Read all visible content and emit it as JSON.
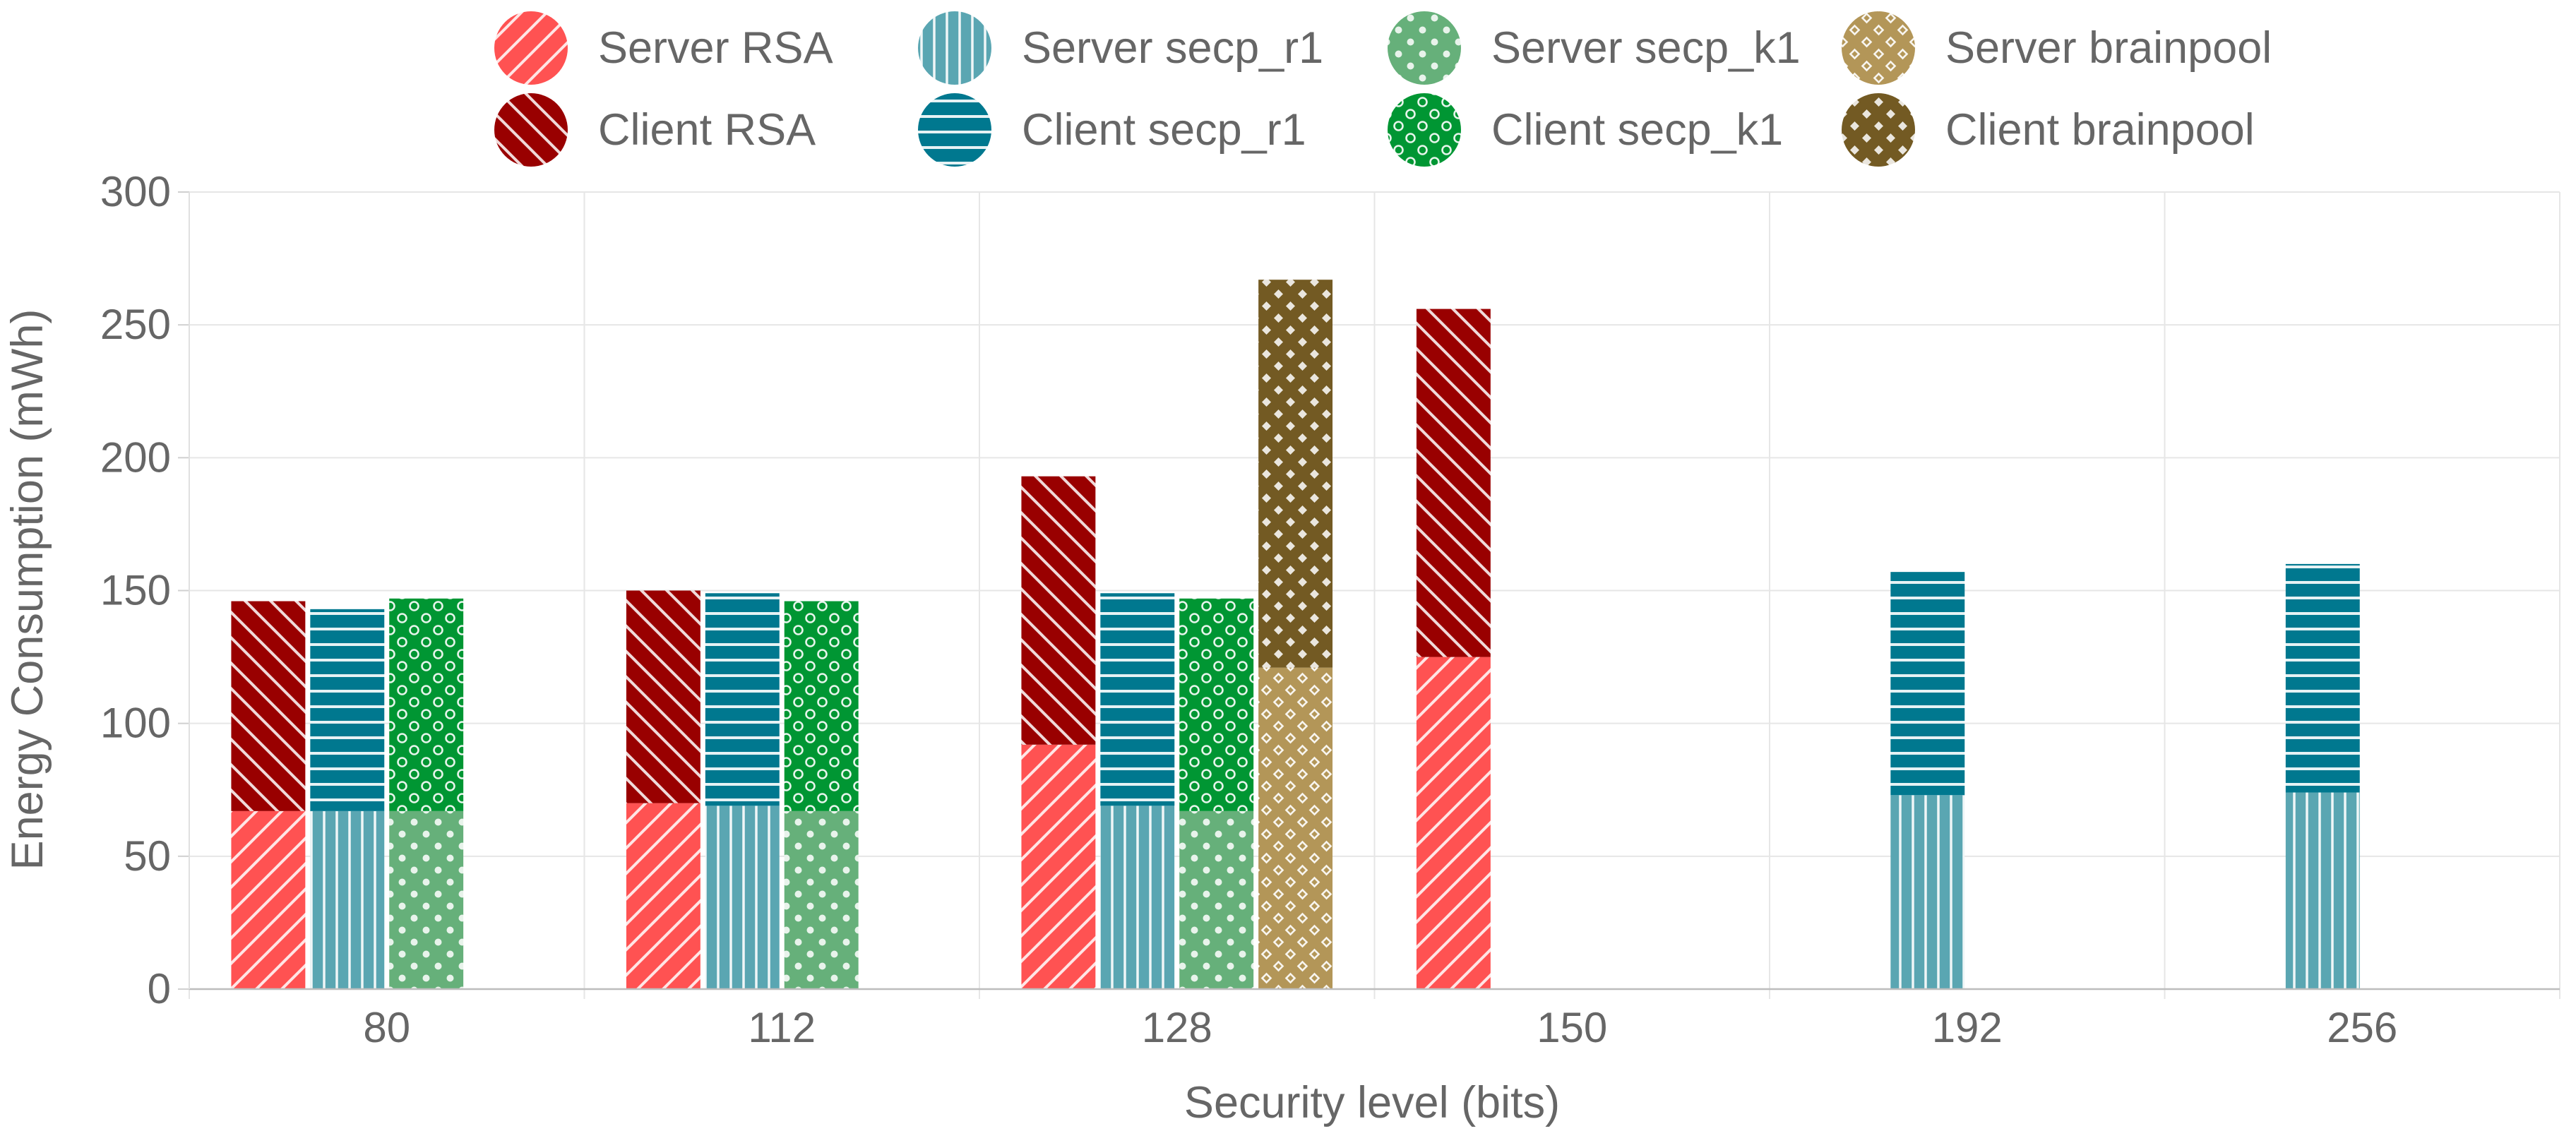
{
  "chart_data": {
    "type": "bar",
    "stacked": true,
    "xlabel": "Security level (bits)",
    "ylabel": "Energy Consumption (mWh)",
    "ylim": [
      0,
      300
    ],
    "yticks": [
      0,
      50,
      100,
      150,
      200,
      250,
      300
    ],
    "categories": [
      "80",
      "112",
      "128",
      "150",
      "192",
      "256"
    ],
    "legend_position": "top",
    "groups": [
      {
        "name": "RSA",
        "server": "Server RSA",
        "client": "Client RSA",
        "server_values": [
          67,
          70,
          92,
          125,
          null,
          null
        ],
        "client_values": [
          79,
          80,
          101,
          131,
          null,
          null
        ]
      },
      {
        "name": "secp_r1",
        "server": "Server secp_r1",
        "client": "Client secp_r1",
        "server_values": [
          67,
          69,
          69,
          null,
          73,
          74
        ],
        "client_values": [
          76,
          80,
          80,
          null,
          84,
          86
        ]
      },
      {
        "name": "secp_k1",
        "server": "Server secp_k1",
        "client": "Client secp_k1",
        "server_values": [
          67,
          67,
          67,
          null,
          null,
          null
        ],
        "client_values": [
          80,
          79,
          80,
          null,
          null,
          null
        ]
      },
      {
        "name": "brainpool",
        "server": "Server brainpool",
        "client": "Client brainpool",
        "server_values": [
          null,
          null,
          121,
          null,
          null,
          null
        ],
        "client_values": [
          null,
          null,
          146,
          null,
          null,
          null
        ]
      }
    ],
    "legend": [
      {
        "label": "Server RSA",
        "pattern": "p-srsa"
      },
      {
        "label": "Server secp_r1",
        "pattern": "p-sr1"
      },
      {
        "label": "Server secp_k1",
        "pattern": "p-sk1"
      },
      {
        "label": "Server brainpool",
        "pattern": "p-sbp"
      },
      {
        "label": "Client RSA",
        "pattern": "p-crsa"
      },
      {
        "label": "Client secp_r1",
        "pattern": "p-cr1"
      },
      {
        "label": "Client secp_k1",
        "pattern": "p-ck1"
      },
      {
        "label": "Client brainpool",
        "pattern": "p-cbp"
      }
    ],
    "colors": {
      "server_rsa": "#ff5252",
      "client_rsa": "#990000",
      "server_secp_r1": "#5aa6b2",
      "client_secp_r1": "#00788f",
      "server_secp_k1": "#66b07a",
      "client_secp_k1": "#009633",
      "server_brainpool": "#b39658",
      "client_brainpool": "#735a23"
    }
  }
}
